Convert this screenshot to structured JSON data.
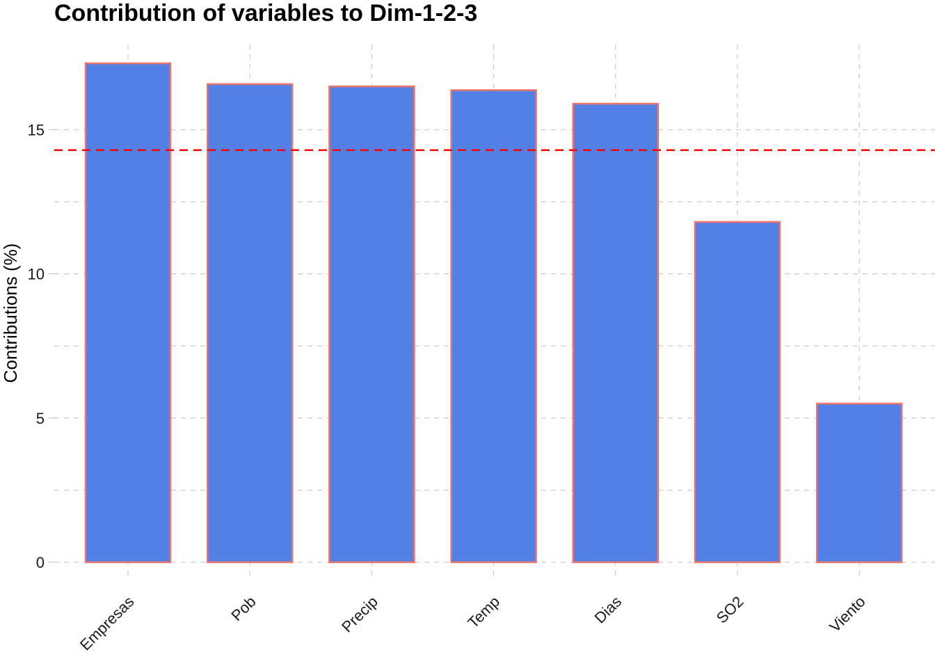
{
  "chart_data": {
    "type": "bar",
    "title": "Contribution of variables to Dim-1-2-3",
    "xlabel": "",
    "ylabel": "Contributions (%)",
    "categories": [
      "Empresas",
      "Pob",
      "Precip",
      "Temp",
      "Dias",
      "SO2",
      "Viento"
    ],
    "values": [
      17.3,
      16.58,
      16.5,
      16.37,
      15.9,
      11.8,
      5.5
    ],
    "ylim": [
      0,
      17.3
    ],
    "yticks": [
      0,
      5,
      10,
      15
    ],
    "reference_line": 14.29,
    "grid": true,
    "colors": {
      "bar_fill": "#5380E4",
      "bar_outline": "#F07268",
      "reference_line": "#FF0000",
      "grid": "#BEBEBE"
    }
  }
}
